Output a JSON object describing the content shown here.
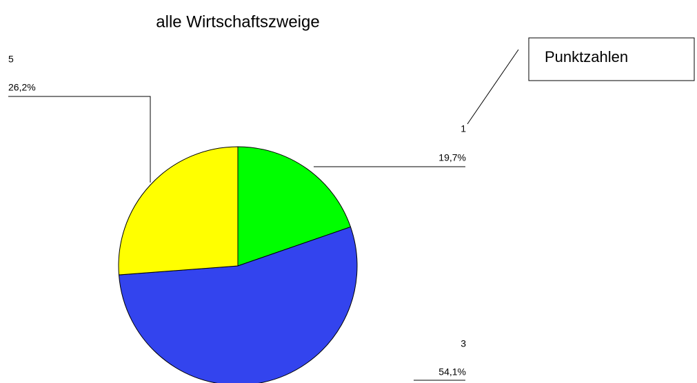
{
  "chart_data": {
    "type": "pie",
    "title": "alle Wirtschaftszweige",
    "annotation": "Punktzahlen",
    "categories": [
      "1",
      "3",
      "5"
    ],
    "values": [
      19.7,
      54.1,
      26.2
    ],
    "value_labels": [
      "19,7%",
      "54,1%",
      "26,2%"
    ],
    "colors": [
      "#00ff00",
      "#3344ee",
      "#ffff00"
    ]
  }
}
